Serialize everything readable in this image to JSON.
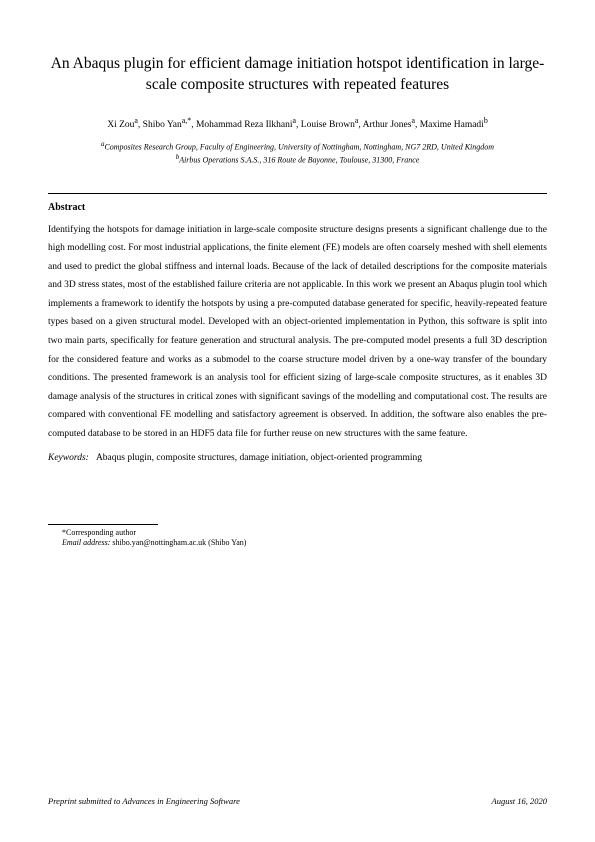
{
  "title": "An Abaqus plugin for efficient damage initiation hotspot identification in large-scale composite structures with repeated features",
  "authors_html": "Xi Zou<sup>a</sup>, Shibo Yan<sup>a,*</sup>, Mohammad Reza Ilkhani<sup>a</sup>, Louise Brown<sup>a</sup>, Arthur Jones<sup>a</sup>, Maxime Hamadi<sup>b</sup>",
  "affiliations": {
    "a": "Composites Research Group, Faculty of Engineering, University of Nottingham, Nottingham, NG7 2RD, United Kingdom",
    "b": "Airbus Operations S.A.S., 316 Route de Bayonne, Toulouse, 31300, France"
  },
  "abstract_heading": "Abstract",
  "abstract_body": "Identifying the hotspots for damage initiation in large-scale composite structure designs presents a significant challenge due to the high modelling cost. For most industrial applications, the finite element (FE) models are often coarsely meshed with shell elements and used to predict the global stiffness and internal loads. Because of the lack of detailed descriptions for the composite materials and 3D stress states, most of the established failure criteria are not applicable. In this work we present an Abaqus plugin tool which implements a framework to identify the hotspots by using a pre-computed database generated for specific, heavily-repeated feature types based on a given structural model. Developed with an object-oriented implementation in Python, this software is split into two main parts, specifically for feature generation and structural analysis. The pre-computed model presents a full 3D description for the considered feature and works as a submodel to the coarse structure model driven by a one-way transfer of the boundary conditions. The presented framework is an analysis tool for efficient sizing of large-scale composite structures, as it enables 3D damage analysis of the structures in critical zones with significant savings of the modelling and computational cost. The results are compared with conventional FE modelling and satisfactory agreement is observed. In addition, the software also enables the pre-computed database to be stored in an HDF5 data file for further reuse on new structures with the same feature.",
  "keywords_label": "Keywords:",
  "keywords": "Abaqus plugin, composite structures, damage initiation, object-oriented programming",
  "corresponding": {
    "star": "*Corresponding author",
    "email_label": "Email address:",
    "email": "shibo.yan@nottingham.ac.uk (Shibo Yan)"
  },
  "footer": {
    "left": "Preprint submitted to Advances in Engineering Software",
    "right": "August 16, 2020"
  }
}
